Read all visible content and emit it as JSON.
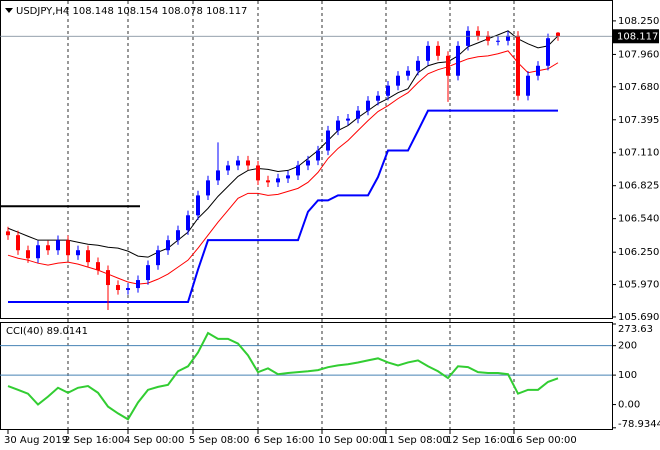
{
  "chart_data": [
    {
      "type": "candlestick",
      "title": "USDJPY,H4  108.148 108.154 108.078 108.117",
      "up_color": "#0000ff",
      "down_color": "#ff0000",
      "open": [
        106.43,
        106.397,
        106.267,
        106.198,
        106.31,
        106.267,
        106.354,
        106.224,
        106.267,
        106.164,
        106.095,
        105.966,
        105.923,
        105.94,
        106.009,
        106.138,
        106.267,
        106.354,
        106.44,
        106.569,
        106.741,
        106.871,
        106.957,
        107.0,
        107.043,
        107.0,
        106.871,
        106.854,
        106.888,
        106.914,
        107.0,
        107.043,
        107.129,
        107.302,
        107.388,
        107.405,
        107.474,
        107.56,
        107.603,
        107.69,
        107.776,
        107.819,
        107.905,
        108.034,
        107.948,
        107.776,
        108.034,
        108.164,
        108.121,
        108.078,
        108.078,
        108.121,
        107.603,
        107.776,
        107.862,
        108.148
      ],
      "high": [
        106.47,
        106.437,
        106.307,
        106.35,
        106.35,
        106.394,
        106.394,
        106.307,
        106.307,
        106.204,
        106.135,
        106.006,
        105.98,
        106.049,
        106.178,
        106.307,
        106.394,
        106.48,
        106.609,
        106.781,
        106.911,
        107.2,
        107.04,
        107.083,
        107.083,
        107.04,
        106.911,
        106.928,
        106.954,
        107.04,
        107.083,
        107.169,
        107.342,
        107.428,
        107.445,
        107.514,
        107.6,
        107.643,
        107.73,
        107.816,
        107.859,
        107.945,
        108.074,
        108.074,
        107.988,
        108.074,
        108.204,
        108.204,
        108.161,
        108.118,
        108.161,
        108.161,
        107.816,
        107.902,
        108.14,
        108.154
      ],
      "low": [
        106.357,
        106.227,
        106.158,
        106.158,
        106.227,
        106.227,
        106.184,
        106.184,
        106.124,
        106.055,
        105.75,
        105.883,
        105.883,
        105.9,
        105.969,
        106.098,
        106.227,
        106.314,
        106.4,
        106.529,
        106.701,
        106.831,
        106.917,
        106.96,
        106.96,
        106.831,
        106.814,
        106.814,
        106.848,
        106.874,
        106.96,
        107.003,
        107.089,
        107.262,
        107.348,
        107.365,
        107.434,
        107.52,
        107.563,
        107.65,
        107.736,
        107.779,
        107.865,
        107.908,
        107.55,
        107.736,
        107.994,
        108.081,
        108.038,
        108.038,
        108.038,
        107.563,
        107.563,
        107.736,
        107.822,
        108.078
      ],
      "close": [
        106.397,
        106.267,
        106.198,
        106.31,
        106.267,
        106.354,
        106.224,
        106.267,
        106.164,
        106.095,
        105.966,
        105.923,
        105.94,
        106.009,
        106.138,
        106.267,
        106.354,
        106.44,
        106.569,
        106.741,
        106.871,
        106.957,
        107.0,
        107.043,
        107.0,
        106.871,
        106.854,
        106.888,
        106.914,
        107.0,
        107.043,
        107.129,
        107.302,
        107.388,
        107.405,
        107.474,
        107.56,
        107.603,
        107.69,
        107.776,
        107.819,
        107.905,
        108.034,
        107.948,
        107.776,
        108.034,
        108.164,
        108.121,
        108.078,
        108.078,
        108.121,
        107.603,
        107.776,
        107.862,
        108.1,
        108.117
      ],
      "lines": [
        {
          "color": "#000000",
          "values": [
            106.457,
            106.423,
            106.388,
            106.354,
            106.354,
            106.354,
            106.354,
            106.336,
            106.319,
            106.31,
            106.293,
            106.285,
            106.259,
            106.216,
            106.207,
            106.25,
            106.285,
            106.354,
            106.423,
            106.543,
            106.629,
            106.733,
            106.819,
            106.905,
            106.957,
            106.974,
            106.966,
            106.948,
            106.957,
            106.991,
            107.06,
            107.129,
            107.216,
            107.302,
            107.345,
            107.414,
            107.474,
            107.535,
            107.578,
            107.629,
            107.664,
            107.802,
            107.862,
            107.888,
            107.897,
            107.948,
            108.026,
            108.06,
            108.095,
            108.129,
            108.164,
            108.095,
            108.052,
            108.017,
            108.034,
            108.121
          ]
        },
        {
          "color": "#ff0000",
          "values": [
            106.224,
            106.198,
            106.181,
            106.155,
            106.138,
            106.155,
            106.164,
            106.147,
            106.121,
            106.095,
            106.061,
            106.026,
            105.992,
            105.974,
            105.983,
            106.017,
            106.061,
            106.121,
            106.181,
            106.285,
            106.397,
            106.509,
            106.612,
            106.716,
            106.759,
            106.759,
            106.741,
            106.75,
            106.776,
            106.802,
            106.854,
            106.94,
            107.06,
            107.147,
            107.216,
            107.302,
            107.388,
            107.466,
            107.517,
            107.578,
            107.629,
            107.716,
            107.793,
            107.828,
            107.853,
            107.888,
            107.922,
            107.94,
            107.948,
            107.966,
            107.991,
            107.888,
            107.802,
            107.819,
            107.836,
            107.888
          ]
        },
        {
          "color": "#0000ff",
          "values": [
            105.819,
            105.819,
            105.819,
            105.819,
            105.819,
            105.819,
            105.819,
            105.819,
            105.819,
            105.819,
            105.819,
            105.819,
            105.819,
            105.819,
            105.819,
            105.819,
            105.819,
            105.819,
            105.819,
            106.1,
            106.354,
            106.354,
            106.354,
            106.354,
            106.354,
            106.354,
            106.354,
            106.354,
            106.354,
            106.354,
            106.6,
            106.698,
            106.698,
            106.741,
            106.741,
            106.741,
            106.741,
            106.9,
            107.129,
            107.129,
            107.129,
            107.3,
            107.474,
            107.474,
            107.474,
            107.474,
            107.474,
            107.474,
            107.474,
            107.474,
            107.474,
            107.474,
            107.474,
            107.474,
            107.474,
            107.474
          ]
        }
      ],
      "hline": {
        "value": 106.647,
        "from": 0,
        "to": 13,
        "color": "#000000"
      },
      "ylim": [
        105.681,
        108.422
      ],
      "yticks": [
        {
          "value": 108.25,
          "label": "108.250"
        },
        {
          "value": 107.96,
          "label": "107.960"
        },
        {
          "value": 107.68,
          "label": "107.680"
        },
        107.395,
        {
          "value": 107.11,
          "label": "107.110"
        },
        106.825,
        {
          "value": 106.54,
          "label": "106.540"
        },
        {
          "value": 106.25,
          "label": "106.250"
        },
        {
          "value": 105.97,
          "label": "105.970"
        },
        {
          "value": 105.69,
          "label": "105.690"
        }
      ],
      "xticks": [
        {
          "value": 0,
          "label": "30 Aug 2019"
        },
        {
          "value": 6,
          "label": "2 Sep 16:00"
        },
        {
          "value": 12,
          "label": "4 Sep 00:00"
        },
        {
          "value": 18.5,
          "label": "5 Sep 08:00"
        },
        {
          "value": 25,
          "label": "6 Sep 16:00"
        },
        {
          "value": 31.4,
          "label": "10 Sep 00:00"
        },
        {
          "value": 37.8,
          "label": "11 Sep 08:00"
        },
        {
          "value": 44.2,
          "label": "12 Sep 16:00"
        },
        {
          "value": 50.6,
          "label": "16 Sep 00:00"
        }
      ]
    },
    {
      "type": "line",
      "title": "CCI(40) 89.0141",
      "color": "#32cd32",
      "values": [
        63,
        50,
        37,
        0,
        27,
        57,
        40,
        57,
        63,
        40,
        -7,
        -30,
        -50,
        7,
        50,
        60,
        67,
        113,
        130,
        177,
        243,
        223,
        223,
        207,
        167,
        110,
        123,
        103,
        107,
        110,
        113,
        117,
        127,
        133,
        137,
        143,
        150,
        157,
        143,
        133,
        143,
        150,
        130,
        113,
        90,
        130,
        127,
        110,
        107,
        107,
        103,
        37,
        50,
        50,
        77,
        89.0141
      ],
      "ylim": [
        -83,
        277
      ],
      "yticks": [
        273.63,
        200,
        100,
        {
          "value": 0,
          "label": "0.00"
        },
        -78.9344
      ],
      "levels": [
        200,
        100
      ],
      "level_color": "#4682b4"
    }
  ]
}
